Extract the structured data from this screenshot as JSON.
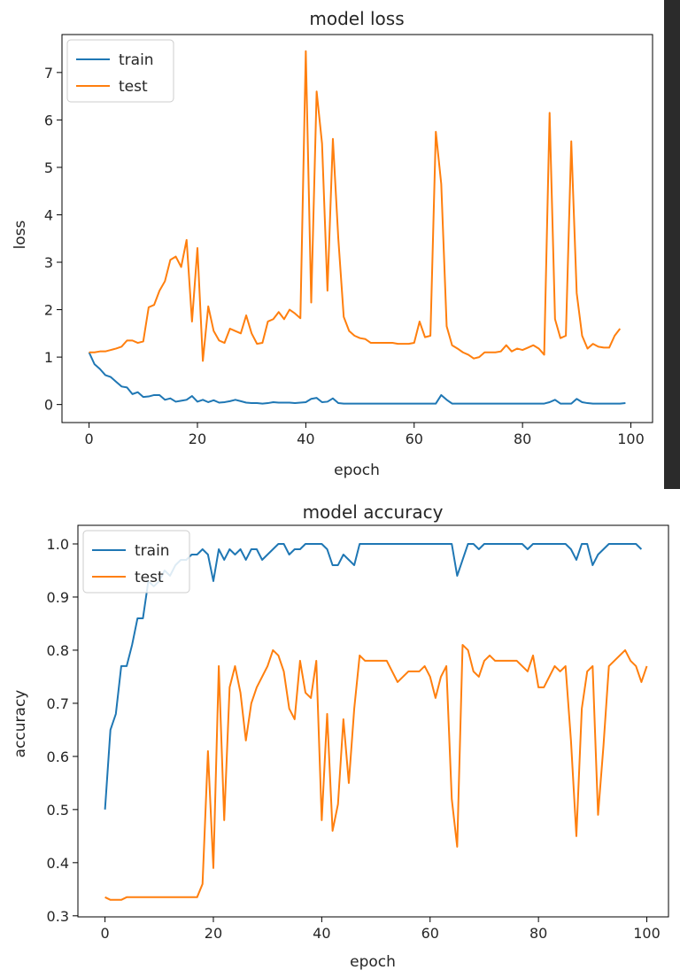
{
  "chart_data": [
    {
      "type": "line",
      "title": "model loss",
      "xlabel": "epoch",
      "ylabel": "loss",
      "xlim": [
        -5,
        104
      ],
      "ylim": [
        -0.38,
        7.8
      ],
      "xticks": [
        0,
        20,
        40,
        60,
        80,
        100
      ],
      "yticks": [
        0,
        1,
        2,
        3,
        4,
        5,
        6,
        7
      ],
      "legend_position": "top-left",
      "grid": false,
      "series": [
        {
          "name": "train",
          "color": "#1f77b4",
          "values": [
            1.1,
            0.85,
            0.75,
            0.62,
            0.58,
            0.48,
            0.38,
            0.36,
            0.22,
            0.26,
            0.16,
            0.17,
            0.2,
            0.2,
            0.1,
            0.13,
            0.06,
            0.08,
            0.1,
            0.18,
            0.06,
            0.1,
            0.05,
            0.09,
            0.04,
            0.05,
            0.07,
            0.1,
            0.07,
            0.04,
            0.03,
            0.03,
            0.02,
            0.03,
            0.05,
            0.04,
            0.04,
            0.04,
            0.03,
            0.04,
            0.05,
            0.12,
            0.14,
            0.05,
            0.06,
            0.13,
            0.03,
            0.02,
            0.02,
            0.02,
            0.02,
            0.02,
            0.02,
            0.02,
            0.02,
            0.02,
            0.02,
            0.02,
            0.02,
            0.02,
            0.02,
            0.02,
            0.02,
            0.02,
            0.02,
            0.2,
            0.1,
            0.02,
            0.02,
            0.02,
            0.02,
            0.02,
            0.02,
            0.02,
            0.02,
            0.02,
            0.02,
            0.02,
            0.02,
            0.02,
            0.02,
            0.02,
            0.02,
            0.02,
            0.02,
            0.05,
            0.1,
            0.02,
            0.02,
            0.02,
            0.12,
            0.05,
            0.03,
            0.02,
            0.02,
            0.02,
            0.02,
            0.02,
            0.02,
            0.03
          ]
        },
        {
          "name": "test",
          "color": "#ff7f0e",
          "values": [
            1.1,
            1.1,
            1.12,
            1.12,
            1.15,
            1.18,
            1.22,
            1.35,
            1.35,
            1.3,
            1.33,
            2.05,
            2.1,
            2.4,
            2.6,
            3.05,
            3.12,
            2.9,
            3.47,
            1.75,
            3.3,
            0.92,
            2.07,
            1.55,
            1.35,
            1.3,
            1.6,
            1.55,
            1.5,
            1.88,
            1.5,
            1.28,
            1.3,
            1.75,
            1.8,
            1.95,
            1.8,
            2.0,
            1.92,
            1.82,
            7.45,
            2.15,
            6.6,
            5.5,
            2.4,
            5.6,
            3.5,
            1.85,
            1.55,
            1.45,
            1.4,
            1.38,
            1.3,
            1.3,
            1.3,
            1.3,
            1.3,
            1.28,
            1.28,
            1.28,
            1.3,
            1.75,
            1.42,
            1.45,
            5.75,
            4.65,
            1.65,
            1.25,
            1.18,
            1.1,
            1.05,
            0.97,
            1.0,
            1.1,
            1.1,
            1.1,
            1.12,
            1.25,
            1.12,
            1.18,
            1.15,
            1.2,
            1.25,
            1.18,
            1.05,
            6.15,
            1.8,
            1.4,
            1.45,
            5.55,
            2.35,
            1.45,
            1.18,
            1.28,
            1.22,
            1.2,
            1.2,
            1.45,
            1.6
          ]
        }
      ]
    },
    {
      "type": "line",
      "title": "model accuracy",
      "xlabel": "epoch",
      "ylabel": "accuracy",
      "xlim": [
        -5,
        104
      ],
      "ylim": [
        0.298,
        1.035
      ],
      "xticks": [
        0,
        20,
        40,
        60,
        80,
        100
      ],
      "yticks": [
        0.3,
        0.4,
        0.5,
        0.6,
        0.7,
        0.8,
        0.9,
        1.0
      ],
      "legend_position": "top-left",
      "grid": false,
      "series": [
        {
          "name": "train",
          "color": "#1f77b4",
          "values": [
            0.5,
            0.65,
            0.68,
            0.77,
            0.77,
            0.81,
            0.86,
            0.86,
            0.93,
            0.92,
            0.93,
            0.95,
            0.94,
            0.96,
            0.97,
            0.97,
            0.98,
            0.98,
            0.99,
            0.98,
            0.93,
            0.99,
            0.97,
            0.99,
            0.98,
            0.99,
            0.97,
            0.99,
            0.99,
            0.97,
            0.98,
            0.99,
            1.0,
            1.0,
            0.98,
            0.99,
            0.99,
            1.0,
            1.0,
            1.0,
            1.0,
            0.99,
            0.96,
            0.96,
            0.98,
            0.97,
            0.96,
            1.0,
            1.0,
            1.0,
            1.0,
            1.0,
            1.0,
            1.0,
            1.0,
            1.0,
            1.0,
            1.0,
            1.0,
            1.0,
            1.0,
            1.0,
            1.0,
            1.0,
            1.0,
            0.94,
            0.97,
            1.0,
            1.0,
            0.99,
            1.0,
            1.0,
            1.0,
            1.0,
            1.0,
            1.0,
            1.0,
            1.0,
            0.99,
            1.0,
            1.0,
            1.0,
            1.0,
            1.0,
            1.0,
            1.0,
            0.99,
            0.97,
            1.0,
            1.0,
            0.96,
            0.98,
            0.99,
            1.0,
            1.0,
            1.0,
            1.0,
            1.0,
            1.0,
            0.99
          ]
        },
        {
          "name": "test",
          "color": "#ff7f0e",
          "values": [
            0.335,
            0.33,
            0.33,
            0.33,
            0.335,
            0.335,
            0.335,
            0.335,
            0.335,
            0.335,
            0.335,
            0.335,
            0.335,
            0.335,
            0.335,
            0.335,
            0.335,
            0.335,
            0.36,
            0.61,
            0.39,
            0.77,
            0.48,
            0.73,
            0.77,
            0.72,
            0.63,
            0.7,
            0.73,
            0.75,
            0.77,
            0.8,
            0.79,
            0.76,
            0.69,
            0.67,
            0.78,
            0.72,
            0.71,
            0.78,
            0.48,
            0.68,
            0.46,
            0.51,
            0.67,
            0.55,
            0.69,
            0.79,
            0.78,
            0.78,
            0.78,
            0.78,
            0.78,
            0.76,
            0.74,
            0.75,
            0.76,
            0.76,
            0.76,
            0.77,
            0.75,
            0.71,
            0.75,
            0.77,
            0.52,
            0.43,
            0.81,
            0.8,
            0.76,
            0.75,
            0.78,
            0.79,
            0.78,
            0.78,
            0.78,
            0.78,
            0.78,
            0.77,
            0.76,
            0.79,
            0.73,
            0.73,
            0.75,
            0.77,
            0.76,
            0.77,
            0.63,
            0.45,
            0.69,
            0.76,
            0.77,
            0.49,
            0.62,
            0.77,
            0.78,
            0.79,
            0.8,
            0.78,
            0.77,
            0.74,
            0.77
          ]
        }
      ]
    }
  ]
}
